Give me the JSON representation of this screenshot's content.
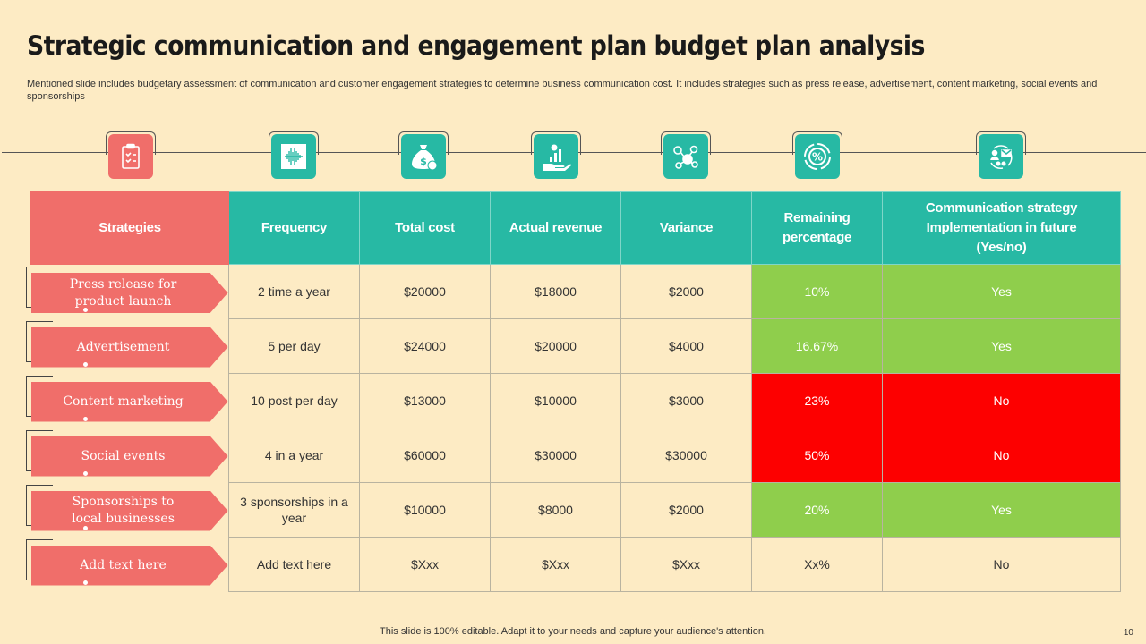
{
  "title": "Strategic communication and engagement plan budget plan analysis",
  "subtitle": "Mentioned slide includes budgetary assessment of communication and customer engagement strategies to determine business communication cost. It includes strategies such as press release, advertisement, content marketing, social events and sponsorships",
  "icons": [
    {
      "name": "clipboard-icon",
      "color": "#f06e6a"
    },
    {
      "name": "audio-wave-icon",
      "color": "#27b9a4"
    },
    {
      "name": "money-bag-icon",
      "color": "#27b9a4"
    },
    {
      "name": "hand-growth-icon",
      "color": "#27b9a4"
    },
    {
      "name": "molecule-icon",
      "color": "#27b9a4"
    },
    {
      "name": "percentage-icon",
      "color": "#27b9a4"
    },
    {
      "name": "communication-cycle-icon",
      "color": "#27b9a4"
    }
  ],
  "table": {
    "headers": {
      "strategies": "Strategies",
      "frequency": "Frequency",
      "total_cost": "Total cost",
      "actual_revenue": "Actual revenue",
      "variance": "Variance",
      "remaining_line1": "Remaining",
      "remaining_line2": "percentage",
      "impl_line1": "Communication strategy",
      "impl_line2": "Implementation in future",
      "impl_line3": "(Yes/no)"
    },
    "rows": [
      {
        "strategy_l1": "Press release for",
        "strategy_l2": "product launch",
        "frequency": "2 time a year",
        "total_cost": "$20000",
        "actual_revenue": "$18000",
        "variance": "$2000",
        "remaining": "10%",
        "implementation": "Yes",
        "status": "green"
      },
      {
        "strategy_l1": "Advertisement",
        "strategy_l2": "",
        "frequency": "5 per day",
        "total_cost": "$24000",
        "actual_revenue": "$20000",
        "variance": "$4000",
        "remaining": "16.67%",
        "implementation": "Yes",
        "status": "green"
      },
      {
        "strategy_l1": "Content marketing",
        "strategy_l2": "",
        "frequency": "10 post per day",
        "total_cost": "$13000",
        "actual_revenue": "$10000",
        "variance": "$3000",
        "remaining": "23%",
        "implementation": "No",
        "status": "red"
      },
      {
        "strategy_l1": "Social events",
        "strategy_l2": "",
        "frequency": "4 in a year",
        "total_cost": "$60000",
        "actual_revenue": "$30000",
        "variance": "$30000",
        "remaining": "50%",
        "implementation": "No",
        "status": "red"
      },
      {
        "strategy_l1": "Sponsorships to",
        "strategy_l2": "local businesses",
        "frequency": "3 sponsorships in a year",
        "total_cost": "$10000",
        "actual_revenue": "$8000",
        "variance": "$2000",
        "remaining": "20%",
        "implementation": "Yes",
        "status": "green"
      },
      {
        "strategy_l1": "Add text here",
        "strategy_l2": "",
        "frequency": "Add text here",
        "total_cost": "$Xxx",
        "actual_revenue": "$Xxx",
        "variance": "$Xxx",
        "remaining": "Xx%",
        "implementation": "No",
        "status": "none"
      }
    ]
  },
  "colors": {
    "accent_teal": "#27b9a4",
    "accent_coral": "#f06e6a",
    "positive": "#8fce4c",
    "negative": "#fd0000",
    "background": "#fdebc4"
  },
  "footer": "This slide is 100% editable. Adapt it to your needs and capture your audience's attention.",
  "page_number": "10"
}
